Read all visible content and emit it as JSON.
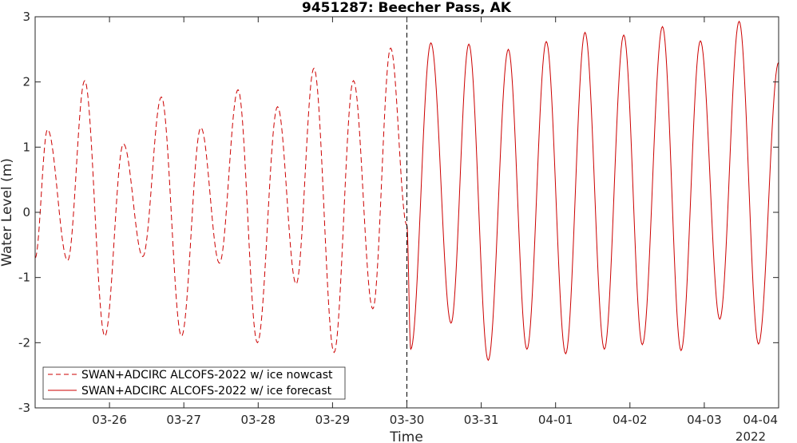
{
  "chart_data": {
    "type": "line",
    "title": "9451287: Beecher Pass, AK",
    "xlabel": "Time",
    "ylabel": "Water Level (m)",
    "x_year_label": "2022",
    "x_range": [
      "2022-03-25T00:00",
      "2022-04-04T00:00"
    ],
    "x_ticks": [
      "03-26",
      "03-27",
      "03-28",
      "03-29",
      "03-30",
      "03-31",
      "04-01",
      "04-02",
      "04-03",
      "04-04"
    ],
    "ylim": [
      -3,
      3
    ],
    "y_ticks": [
      "-3",
      "-2",
      "-1",
      "0",
      "1",
      "2",
      "3"
    ],
    "grid": false,
    "legend_position": "bottom-left",
    "nowcast_forecast_boundary": "2022-03-30T00:00",
    "series": [
      {
        "name": "SWAN+ADCIRC ALCOFS-2022 w/ ice nowcast",
        "color": "#cc0000",
        "style": "dashed",
        "points": [
          [
            "2022-03-25T00:00",
            -0.7
          ],
          [
            "2022-03-25T04:00",
            1.27
          ],
          [
            "2022-03-25T10:30",
            -0.74
          ],
          [
            "2022-03-25T16:00",
            2.02
          ],
          [
            "2022-03-25T22:30",
            -1.9
          ],
          [
            "2022-03-26T04:30",
            1.05
          ],
          [
            "2022-03-26T10:45",
            -0.68
          ],
          [
            "2022-03-26T16:45",
            1.77
          ],
          [
            "2022-03-26T23:15",
            -1.9
          ],
          [
            "2022-03-27T05:30",
            1.3
          ],
          [
            "2022-03-27T11:30",
            -0.78
          ],
          [
            "2022-03-27T17:30",
            1.88
          ],
          [
            "2022-03-27T23:45",
            -2.0
          ],
          [
            "2022-03-28T06:15",
            1.62
          ],
          [
            "2022-03-28T12:15",
            -1.1
          ],
          [
            "2022-03-28T18:00",
            2.21
          ],
          [
            "2022-03-29T00:30",
            -2.15
          ],
          [
            "2022-03-29T06:45",
            2.02
          ],
          [
            "2022-03-29T13:00",
            -1.48
          ],
          [
            "2022-03-29T18:45",
            2.52
          ],
          [
            "2022-03-30T00:00",
            -0.2
          ]
        ]
      },
      {
        "name": "SWAN+ADCIRC ALCOFS-2022 w/ ice forecast",
        "color": "#cc0000",
        "style": "solid",
        "points": [
          [
            "2022-03-30T00:00",
            -0.2
          ],
          [
            "2022-03-30T01:15",
            -2.1
          ],
          [
            "2022-03-30T07:45",
            2.6
          ],
          [
            "2022-03-30T14:15",
            -1.7
          ],
          [
            "2022-03-30T20:00",
            2.58
          ],
          [
            "2022-03-31T02:15",
            -2.27
          ],
          [
            "2022-03-31T08:45",
            2.5
          ],
          [
            "2022-03-31T14:45",
            -2.1
          ],
          [
            "2022-03-31T21:00",
            2.62
          ],
          [
            "2022-04-01T03:15",
            -2.17
          ],
          [
            "2022-04-01T09:30",
            2.76
          ],
          [
            "2022-04-01T15:45",
            -2.1
          ],
          [
            "2022-04-01T22:00",
            2.72
          ],
          [
            "2022-04-02T04:00",
            -2.03
          ],
          [
            "2022-04-02T10:30",
            2.85
          ],
          [
            "2022-04-02T16:30",
            -2.12
          ],
          [
            "2022-04-02T22:45",
            2.63
          ],
          [
            "2022-04-03T05:00",
            -1.64
          ],
          [
            "2022-04-03T11:15",
            2.93
          ],
          [
            "2022-04-03T17:30",
            -2.02
          ],
          [
            "2022-04-04T00:00",
            2.3
          ]
        ]
      }
    ]
  }
}
